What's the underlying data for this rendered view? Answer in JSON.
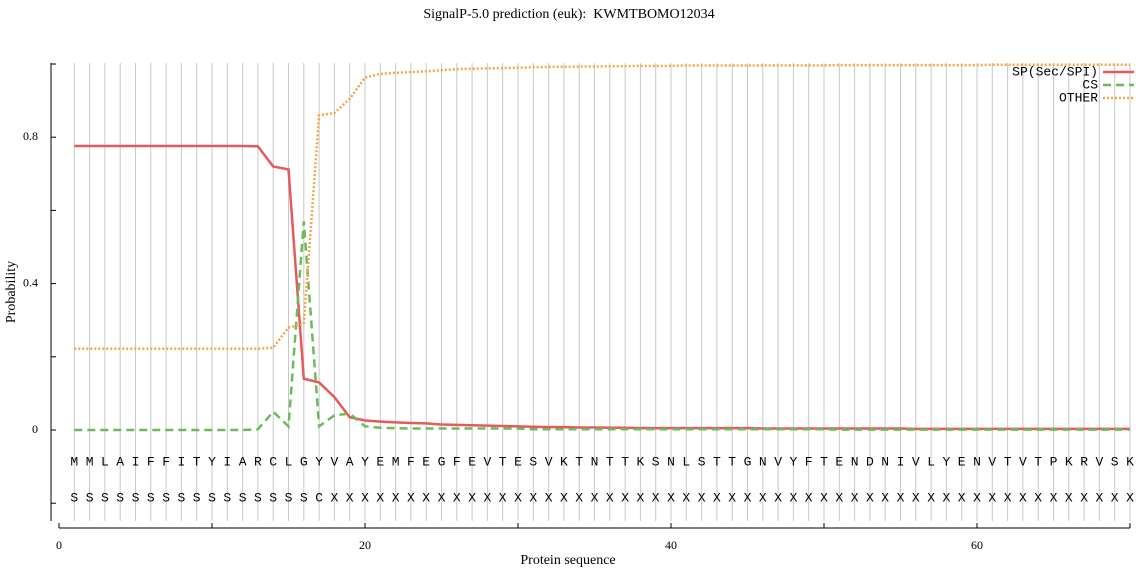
{
  "chart_data": {
    "type": "line",
    "title": "SignalP-5.0 prediction (euk):  KWMTBOMO12034",
    "x_label": "Protein sequence",
    "y_label": "Probability",
    "xlim": [
      0,
      70
    ],
    "xticks": [
      0,
      20,
      40,
      60
    ],
    "xminor": [
      10,
      30,
      50,
      70
    ],
    "ylim": [
      -0.25,
      1.0
    ],
    "yticks": [
      0,
      0.4,
      0.8
    ],
    "yminor": [
      -0.2,
      0.2,
      0.6,
      1.0
    ],
    "grid": true,
    "legend": "top-right",
    "x": [
      1,
      2,
      3,
      4,
      5,
      6,
      7,
      8,
      9,
      10,
      11,
      12,
      13,
      14,
      15,
      16,
      17,
      18,
      19,
      20,
      21,
      22,
      23,
      24,
      25,
      26,
      27,
      28,
      29,
      30,
      31,
      32,
      33,
      34,
      35,
      36,
      37,
      38,
      39,
      40,
      41,
      42,
      43,
      44,
      45,
      46,
      47,
      48,
      49,
      50,
      51,
      52,
      53,
      54,
      55,
      56,
      57,
      58,
      59,
      60,
      61,
      62,
      63,
      64,
      65,
      66,
      67,
      68,
      69,
      70
    ],
    "sequence": [
      "M",
      "M",
      "L",
      "A",
      "I",
      "F",
      "F",
      "I",
      "T",
      "Y",
      "I",
      "A",
      "R",
      "C",
      "L",
      "G",
      "Y",
      "V",
      "A",
      "Y",
      "E",
      "M",
      "F",
      "E",
      "G",
      "F",
      "E",
      "V",
      "T",
      "E",
      "S",
      "V",
      "K",
      "T",
      "N",
      "T",
      "T",
      "K",
      "S",
      "N",
      "L",
      "S",
      "T",
      "T",
      "G",
      "N",
      "V",
      "Y",
      "F",
      "T",
      "E",
      "N",
      "D",
      "N",
      "I",
      "V",
      "L",
      "Y",
      "E",
      "N",
      "V",
      "T",
      "V",
      "T",
      "P",
      "K",
      "R",
      "V",
      "S",
      "K"
    ],
    "prediction": [
      "S",
      "S",
      "S",
      "S",
      "S",
      "S",
      "S",
      "S",
      "S",
      "S",
      "S",
      "S",
      "S",
      "S",
      "S",
      "S",
      "C",
      "X",
      "X",
      "X",
      "X",
      "X",
      "X",
      "X",
      "X",
      "X",
      "X",
      "X",
      "X",
      "X",
      "X",
      "X",
      "X",
      "X",
      "X",
      "X",
      "X",
      "X",
      "X",
      "X",
      "X",
      "X",
      "X",
      "X",
      "X",
      "X",
      "X",
      "X",
      "X",
      "X",
      "X",
      "X",
      "X",
      "X",
      "X",
      "X",
      "X",
      "X",
      "X",
      "X",
      "X",
      "X",
      "X",
      "X",
      "X",
      "X",
      "X",
      "X",
      "X",
      "X"
    ],
    "series": [
      {
        "name": "SP(Sec/SPI)",
        "color": "#e65a5c",
        "dash": "solid",
        "values": [
          0.776,
          0.776,
          0.776,
          0.776,
          0.776,
          0.776,
          0.776,
          0.776,
          0.776,
          0.776,
          0.776,
          0.776,
          0.775,
          0.72,
          0.712,
          0.14,
          0.13,
          0.09,
          0.035,
          0.026,
          0.023,
          0.021,
          0.019,
          0.018,
          0.015,
          0.014,
          0.013,
          0.012,
          0.011,
          0.01,
          0.009,
          0.008,
          0.008,
          0.007,
          0.007,
          0.006,
          0.006,
          0.005,
          0.005,
          0.005,
          0.005,
          0.005,
          0.005,
          0.005,
          0.005,
          0.004,
          0.004,
          0.004,
          0.004,
          0.004,
          0.004,
          0.004,
          0.004,
          0.004,
          0.004,
          0.003,
          0.003,
          0.003,
          0.003,
          0.003,
          0.003,
          0.003,
          0.003,
          0.003,
          0.003,
          0.003,
          0.003,
          0.003,
          0.003,
          0.003
        ]
      },
      {
        "name": "CS",
        "color": "#6cbb5a",
        "dash": "dashed",
        "values": [
          0,
          0,
          0,
          0,
          0,
          0,
          0,
          0,
          0,
          0,
          0,
          0,
          0.002,
          0.05,
          0.01,
          0.57,
          0.01,
          0.04,
          0.045,
          0.01,
          0.006,
          0.005,
          0.004,
          0.004,
          0.004,
          0.004,
          0.004,
          0.004,
          0.004,
          0.004,
          0.002,
          0.002,
          0.002,
          0.002,
          0.002,
          0.002,
          0.002,
          0.002,
          0.002,
          0.002,
          0.002,
          0.002,
          0.002,
          0.002,
          0.002,
          0.002,
          0.002,
          0.002,
          0.002,
          0.002,
          0.001,
          0.001,
          0.001,
          0.001,
          0.001,
          0.001,
          0.001,
          0.001,
          0.001,
          0.001,
          0.001,
          0.001,
          0.001,
          0.001,
          0.001,
          0.001,
          0.001,
          0.001,
          0.001,
          0.001
        ]
      },
      {
        "name": "OTHER",
        "color": "#f5a54a",
        "dash": "dotted",
        "values": [
          0.222,
          0.222,
          0.222,
          0.222,
          0.222,
          0.222,
          0.222,
          0.222,
          0.222,
          0.222,
          0.222,
          0.222,
          0.222,
          0.225,
          0.28,
          0.29,
          0.86,
          0.866,
          0.905,
          0.963,
          0.973,
          0.976,
          0.978,
          0.98,
          0.983,
          0.986,
          0.987,
          0.988,
          0.989,
          0.99,
          0.991,
          0.992,
          0.992,
          0.993,
          0.993,
          0.994,
          0.994,
          0.995,
          0.995,
          0.995,
          0.996,
          0.996,
          0.996,
          0.996,
          0.996,
          0.996,
          0.996,
          0.996,
          0.996,
          0.996,
          0.997,
          0.997,
          0.997,
          0.997,
          0.997,
          0.997,
          0.997,
          0.997,
          0.997,
          0.997,
          0.998,
          0.998,
          0.998,
          0.998,
          0.998,
          0.998,
          0.998,
          0.998,
          0.998,
          0.998
        ]
      }
    ]
  }
}
